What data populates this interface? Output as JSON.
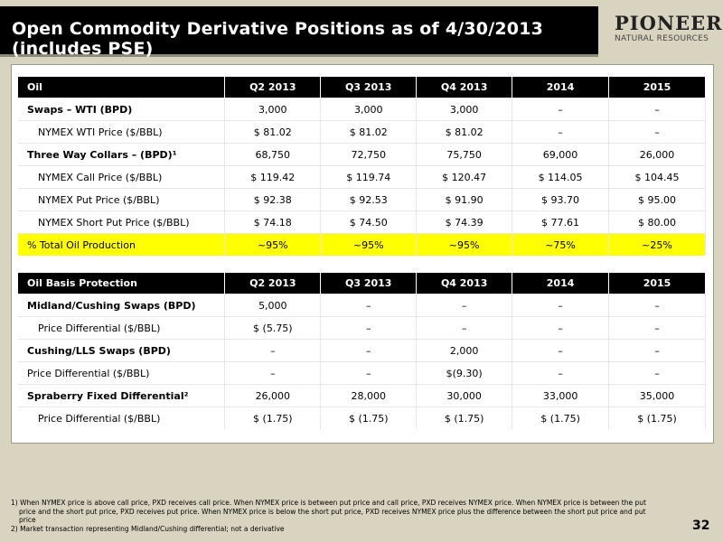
{
  "title": "Open Commodity Derivative Positions as of 4/30/2013 (includes PSE)",
  "logo": {
    "name": "PIONEER",
    "sub": "NATURAL RESOURCES"
  },
  "oil_table": {
    "headers": [
      "Oil",
      "Q2 2013",
      "Q3 2013",
      "Q4 2013",
      "2014",
      "2015"
    ],
    "rows": [
      {
        "label": "Swaps – WTI (BPD)",
        "values": [
          "3,000",
          "3,000",
          "3,000",
          "–",
          "–"
        ]
      },
      {
        "label": "NYMEX WTI Price ($/BBL)",
        "values": [
          "$ 81.02",
          "$ 81.02",
          "$ 81.02",
          "–",
          "–"
        ]
      },
      {
        "label": "Three Way Collars – (BPD)¹",
        "values": [
          "68,750",
          "72,750",
          "75,750",
          "69,000",
          "26,000"
        ]
      },
      {
        "label": "NYMEX Call Price ($/BBL)",
        "values": [
          "$ 119.42",
          "$ 119.74",
          "$ 120.47",
          "$ 114.05",
          "$ 104.45"
        ]
      },
      {
        "label": "NYMEX Put Price ($/BBL)",
        "values": [
          "$ 92.38",
          "$ 92.53",
          "$ 91.90",
          "$ 93.70",
          "$ 95.00"
        ]
      },
      {
        "label": "NYMEX Short Put Price ($/BBL)",
        "values": [
          "$ 74.18",
          "$ 74.50",
          "$ 74.39",
          "$ 77.61",
          "$ 80.00"
        ]
      },
      {
        "label": "% Total Oil Production",
        "values": [
          "~95%",
          "~95%",
          "~95%",
          "~75%",
          "~25%"
        ]
      }
    ]
  },
  "basis_table": {
    "headers": [
      "Oil Basis Protection",
      "Q2 2013",
      "Q3 2013",
      "Q4 2013",
      "2014",
      "2015"
    ],
    "rows": [
      {
        "label": "Midland/Cushing Swaps (BPD)",
        "values": [
          "5,000",
          "–",
          "–",
          "–",
          "–"
        ]
      },
      {
        "label": "Price Differential ($/BBL)",
        "values": [
          "$ (5.75)",
          "–",
          "–",
          "–",
          "–"
        ]
      },
      {
        "label": "Cushing/LLS Swaps (BPD)",
        "values": [
          "–",
          "–",
          "2,000",
          "–",
          "–"
        ]
      },
      {
        "label": "Price Differential ($/BBL)",
        "values": [
          "–",
          "–",
          "$(9.30)",
          "–",
          "–"
        ]
      },
      {
        "label": "Spraberry Fixed Differential²",
        "values": [
          "26,000",
          "28,000",
          "30,000",
          "33,000",
          "35,000"
        ]
      },
      {
        "label": "Price Differential ($/BBL)",
        "values": [
          "$ (1.75)",
          "$ (1.75)",
          "$ (1.75)",
          "$ (1.75)",
          "$ (1.75)"
        ]
      }
    ]
  },
  "footnotes": {
    "f1": "1) When NYMEX price is above call price, PXD receives call price. When NYMEX price is between put price and call price, PXD receives NYMEX price. When NYMEX price is between the put",
    "f1b": "price and the short put price, PXD receives put price. When NYMEX price is below the short put price, PXD receives NYMEX price plus the difference between the short put price and put",
    "f1c": "price",
    "f2": "2) Market transaction representing Midland/Cushing differential; not a derivative"
  },
  "page_number": "32"
}
